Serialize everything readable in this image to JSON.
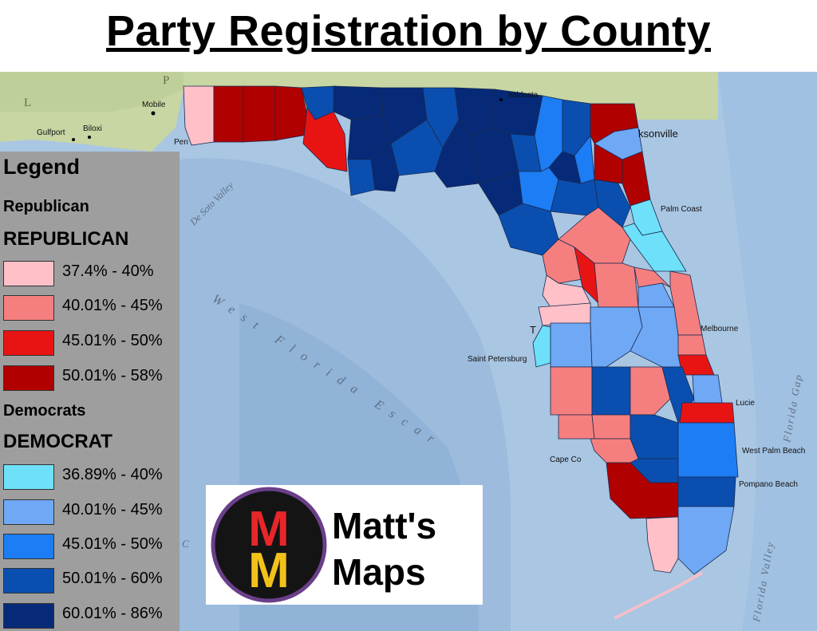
{
  "title": "Party Registration by County",
  "legend": {
    "title": "Legend",
    "republican_group": "Republican",
    "republican_heading": "REPUBLICAN",
    "republican_classes": [
      {
        "label": "37.4% - 40%",
        "color": "#ffc0c8"
      },
      {
        "label": "40.01% - 45%",
        "color": "#f57f7f"
      },
      {
        "label": "45.01% - 50%",
        "color": "#e81414"
      },
      {
        "label": "50.01% - 58%",
        "color": "#b00000"
      }
    ],
    "democrat_group": "Democrats",
    "democrat_heading": "DEMOCRAT",
    "democrat_classes": [
      {
        "label": "36.89% - 40%",
        "color": "#6ee0fa"
      },
      {
        "label": "40.01% - 45%",
        "color": "#6fa8f5"
      },
      {
        "label": "45.01% - 50%",
        "color": "#1c7df5"
      },
      {
        "label": "50.01% - 60%",
        "color": "#0a4fb0"
      },
      {
        "label": "60.01% - 86%",
        "color": "#062a78"
      }
    ]
  },
  "places": {
    "mobile": "Mobile",
    "biloxi": "Biloxi",
    "gulfport": "Gulfport",
    "pensacola": "Pen",
    "valdosta": "Valdosta",
    "jacksonville": "ksonville",
    "palm_coast": "Palm Coast",
    "melbourne": "Melbourne",
    "st_pete": "Saint Petersburg",
    "tampa": "T",
    "lucie": "Lucie",
    "wpb": "West Palm Beach",
    "pompano": "Pompano Beach",
    "cape_coral": "Cape Co",
    "state_l": "L",
    "state_p": "P"
  },
  "sea_labels": {
    "desoto": "De Soto Valley",
    "wfe": "West Florida Escar",
    "fl_gap": "Florida Gap",
    "fl_valley": "Florida Valley",
    "c": "C"
  },
  "logo": {
    "letter": "M",
    "line1": "Matt's",
    "line2": "Maps"
  }
}
